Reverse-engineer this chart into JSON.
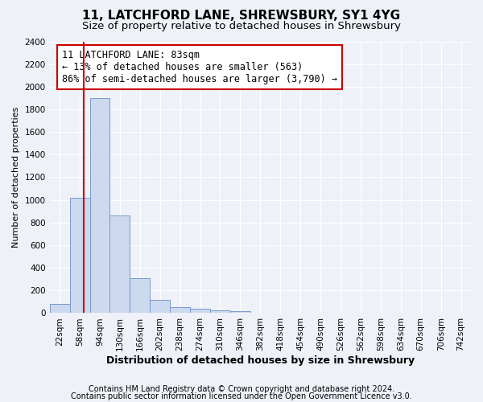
{
  "title1": "11, LATCHFORD LANE, SHREWSBURY, SY1 4YG",
  "title2": "Size of property relative to detached houses in Shrewsbury",
  "xlabel": "Distribution of detached houses by size in Shrewsbury",
  "ylabel": "Number of detached properties",
  "bin_labels": [
    "22sqm",
    "58sqm",
    "94sqm",
    "130sqm",
    "166sqm",
    "202sqm",
    "238sqm",
    "274sqm",
    "310sqm",
    "346sqm",
    "382sqm",
    "418sqm",
    "454sqm",
    "490sqm",
    "526sqm",
    "562sqm",
    "598sqm",
    "634sqm",
    "670sqm",
    "706sqm",
    "742sqm"
  ],
  "bar_values": [
    80,
    1020,
    1900,
    860,
    310,
    120,
    55,
    42,
    25,
    15,
    5,
    5,
    0,
    0,
    0,
    0,
    0,
    0,
    0,
    0,
    0
  ],
  "bar_color": "#ccd9ee",
  "bar_edge_color": "#7799cc",
  "vline_color": "#cc0000",
  "vline_x": 1.47,
  "ylim": [
    0,
    2400
  ],
  "yticks": [
    0,
    200,
    400,
    600,
    800,
    1000,
    1200,
    1400,
    1600,
    1800,
    2000,
    2200,
    2400
  ],
  "annotation_text": "11 LATCHFORD LANE: 83sqm\n← 13% of detached houses are smaller (563)\n86% of semi-detached houses are larger (3,790) →",
  "annotation_box_facecolor": "#ffffff",
  "annotation_box_edgecolor": "#cc0000",
  "footer1": "Contains HM Land Registry data © Crown copyright and database right 2024.",
  "footer2": "Contains public sector information licensed under the Open Government Licence v3.0.",
  "bg_color": "#eef2f8",
  "plot_bg_color": "#eef2f8",
  "grid_color": "#ffffff",
  "title1_fontsize": 11,
  "title2_fontsize": 9.5,
  "xlabel_fontsize": 9,
  "ylabel_fontsize": 8,
  "tick_fontsize": 7.5,
  "annotation_fontsize": 8.5,
  "footer_fontsize": 7
}
